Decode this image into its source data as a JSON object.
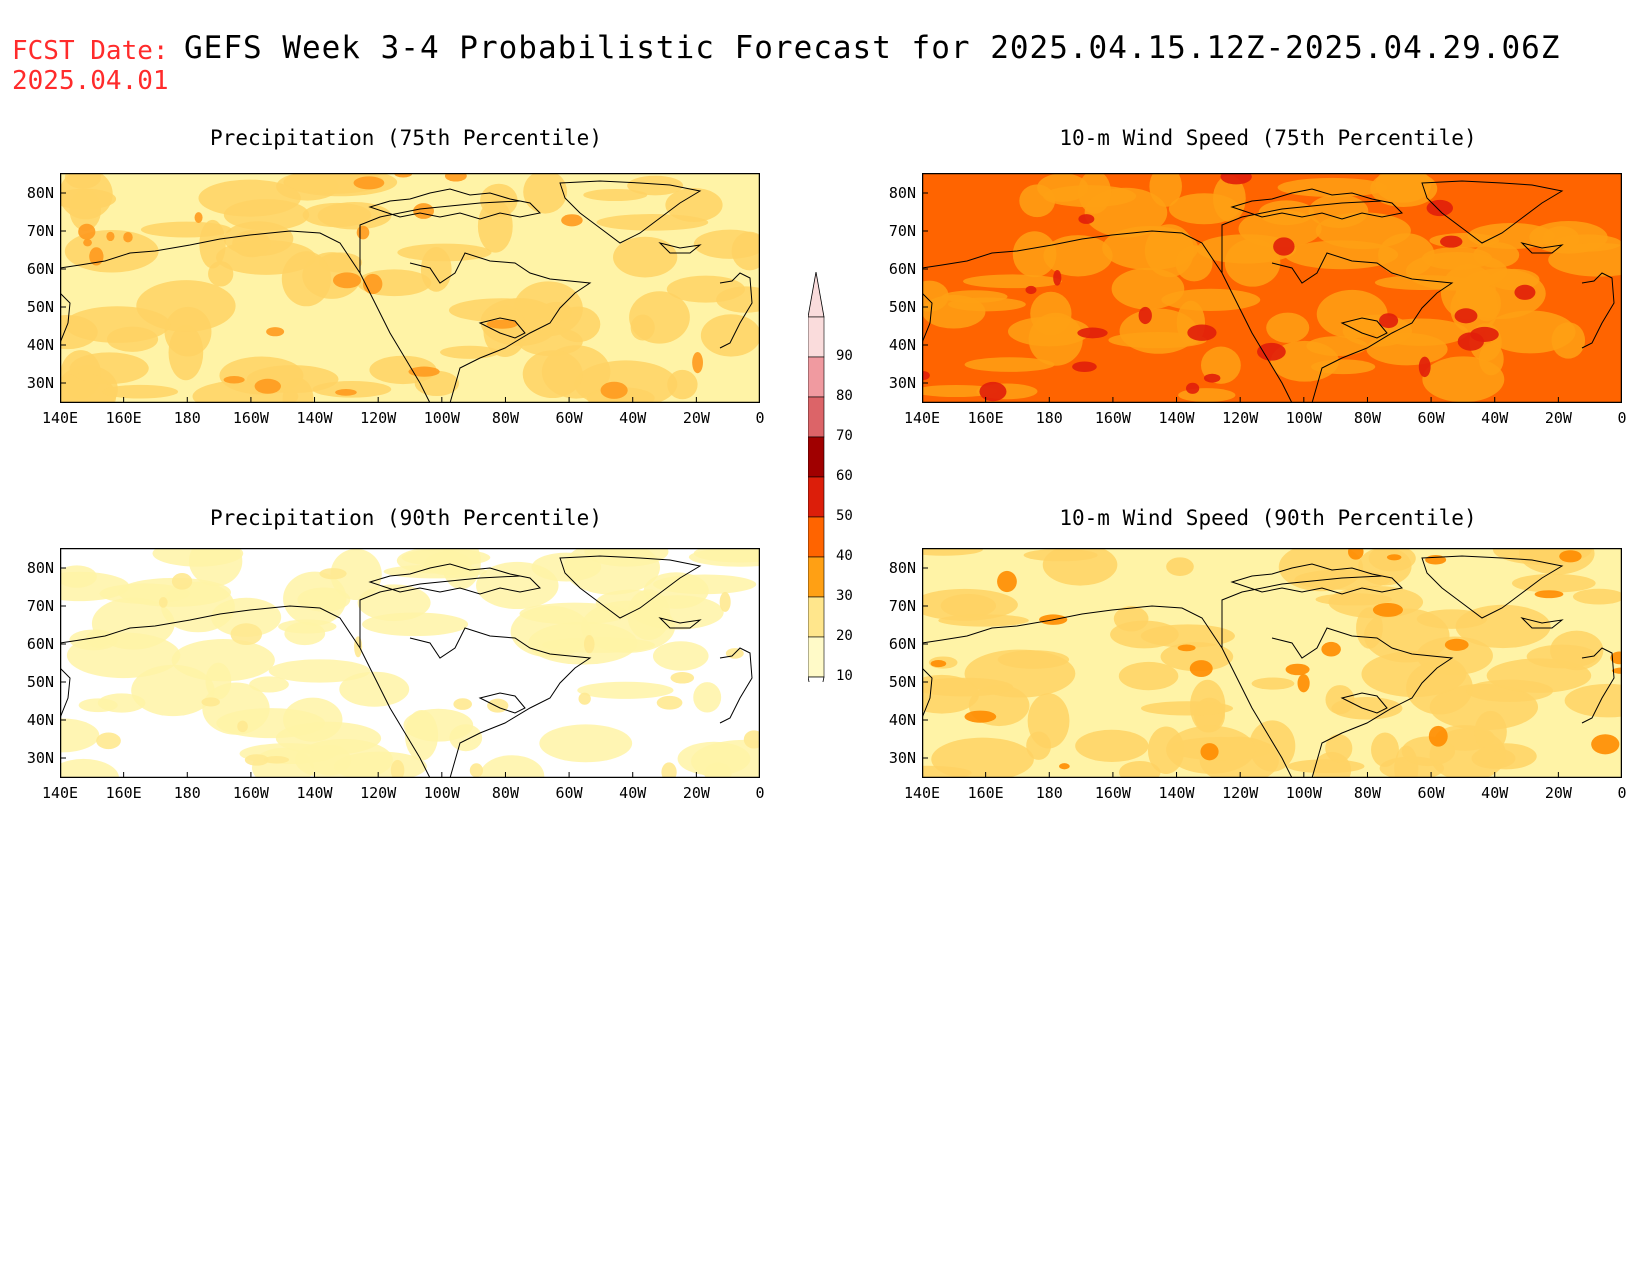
{
  "header": {
    "fcst_label": "FCST Date:",
    "fcst_date": "2025.04.01",
    "title": "GEFS Week 3-4 Probabilistic Forecast for 2025.04.15.12Z-2025.04.29.06Z"
  },
  "axes": {
    "lat_labels": [
      "80N",
      "70N",
      "60N",
      "50N",
      "40N",
      "30N"
    ],
    "lon_labels": [
      "140E",
      "160E",
      "180",
      "160W",
      "140W",
      "120W",
      "100W",
      "80W",
      "60W",
      "40W",
      "20W",
      "0"
    ]
  },
  "panels": [
    {
      "id": "precip75",
      "title": "Precipitation (75th Percentile)",
      "base_color": "#fff3a6",
      "patch_color": "#ffd264",
      "accent_color": "#ff9a1e"
    },
    {
      "id": "wind75",
      "title": "10-m Wind Speed (75th Percentile)",
      "base_color": "#ff6400",
      "patch_color": "#ffa014",
      "accent_color": "#e11e0a"
    },
    {
      "id": "precip90",
      "title": "Precipitation (90th Percentile)",
      "base_color": "#ffffff",
      "patch_color": "#fff3a6",
      "accent_color": "#ffe990"
    },
    {
      "id": "wind90",
      "title": "10-m Wind Speed (90th Percentile)",
      "base_color": "#fff3a6",
      "patch_color": "#ffd264",
      "accent_color": "#ff8c00"
    }
  ],
  "colorbar": {
    "levels": [
      "90",
      "80",
      "70",
      "60",
      "50",
      "40",
      "30",
      "20",
      "10"
    ],
    "colors": [
      "#fadcdc",
      "#f09aa0",
      "#dc6468",
      "#a00000",
      "#dc1e0a",
      "#ff6400",
      "#ffa014",
      "#ffe68c",
      "#fffac8"
    ]
  }
}
